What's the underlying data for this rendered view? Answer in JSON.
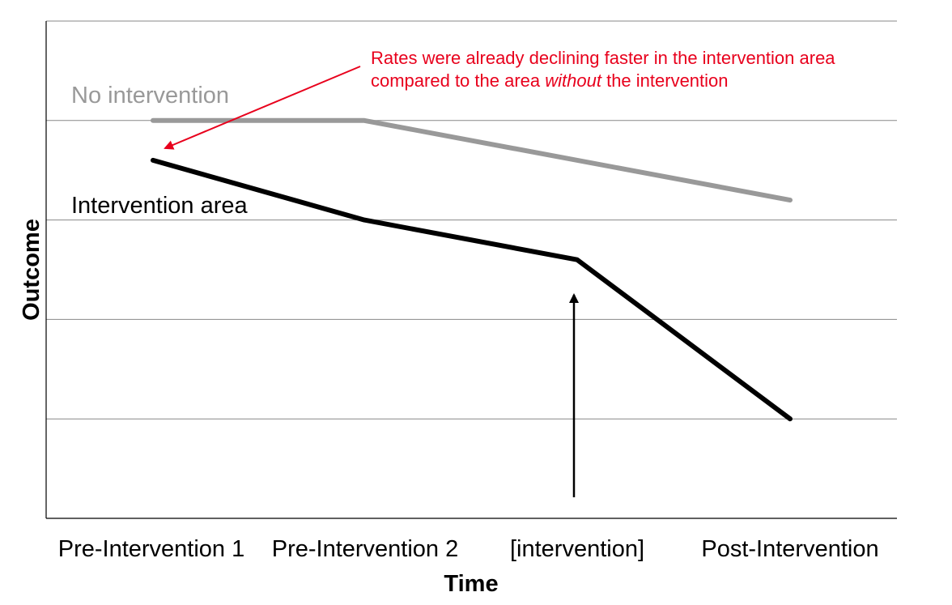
{
  "chart_data": {
    "type": "line",
    "xlabel": "Time",
    "ylabel": "Outcome",
    "categories": [
      "Pre-Intervention 1",
      "Pre-Intervention 2",
      "[intervention]",
      "Post-Intervention"
    ],
    "ylim": [
      0,
      5
    ],
    "grid": true,
    "series": [
      {
        "name": "No intervention",
        "color": "#999999",
        "values": [
          4,
          4,
          null,
          3.2
        ]
      },
      {
        "name": "Intervention area",
        "color": "#000000",
        "values": [
          3.6,
          3,
          2.6,
          1
        ]
      }
    ],
    "annotations": [
      {
        "lines": [
          {
            "parts": [
              {
                "text": "Rates were already declining faster in the intervention area",
                "italic": false
              }
            ]
          },
          {
            "parts": [
              {
                "text": "compared to the area ",
                "italic": false
              },
              {
                "text": "without",
                "italic": true
              },
              {
                "text": " the intervention",
                "italic": false
              }
            ]
          }
        ],
        "color": "#e8001c",
        "points_to": "Pre-Intervention 1"
      },
      {
        "text": "",
        "marks": "[intervention]",
        "type": "arrow"
      }
    ]
  }
}
